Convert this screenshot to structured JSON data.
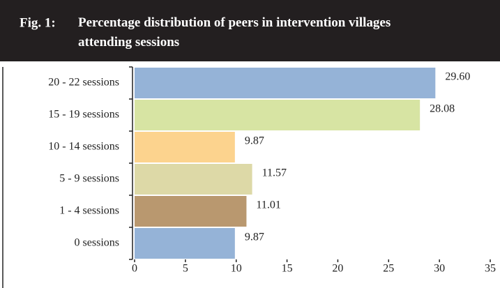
{
  "chart_data": {
    "type": "bar",
    "orientation": "horizontal",
    "label": "Fig. 1:",
    "title": "Percentage distribution of peers in intervention villages attending sessions",
    "categories": [
      "20 - 22 sessions",
      "15 - 19 sessions",
      "10 - 14 sessions",
      "5 - 9 sessions",
      "1 - 4 sessions",
      "0 sessions"
    ],
    "values": [
      29.6,
      28.08,
      9.87,
      11.57,
      11.01,
      9.87
    ],
    "value_labels": [
      "29.60",
      "28.08",
      "9.87",
      "11.57",
      "11.01",
      "9.87"
    ],
    "colors": [
      "#95b3d7",
      "#d7e4a3",
      "#fcd38e",
      "#ddd9a7",
      "#b9986f",
      "#95b3d7"
    ],
    "xlim": [
      0,
      35
    ],
    "xticks": [
      0,
      5,
      10,
      15,
      20,
      25,
      30,
      35
    ]
  }
}
